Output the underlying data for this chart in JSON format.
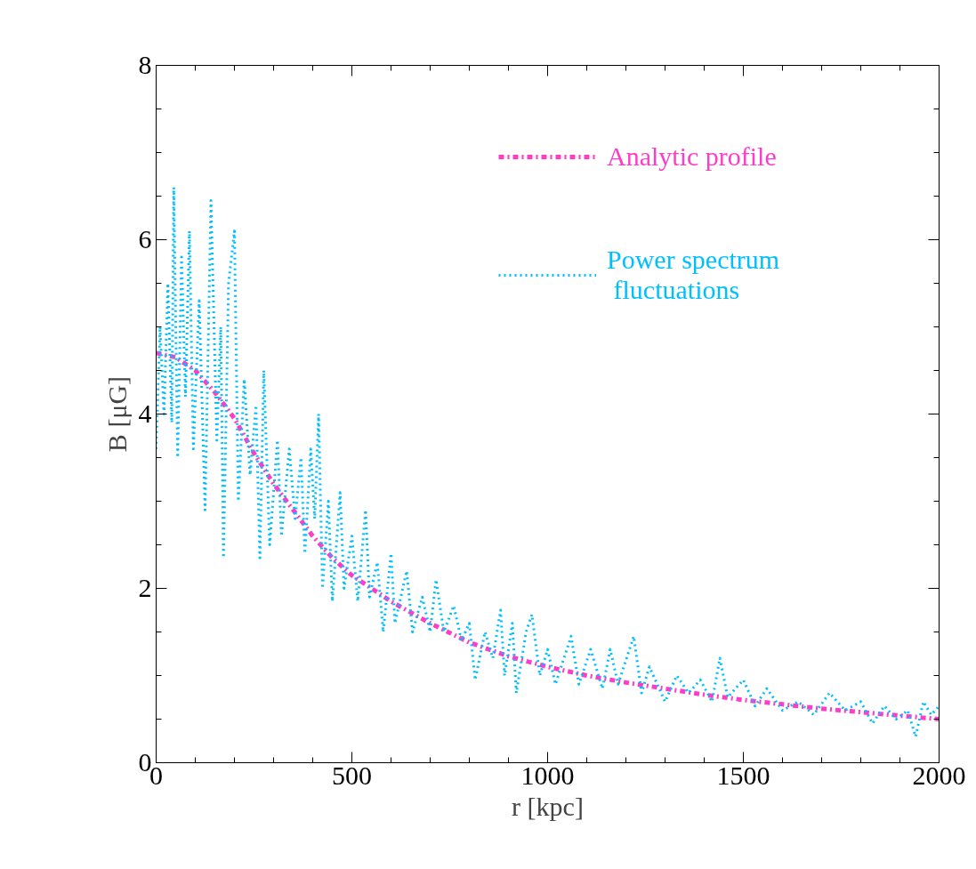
{
  "chart_data": {
    "type": "line",
    "xlabel": "r [kpc]",
    "ylabel": "B [μG]",
    "xlim": [
      0,
      2000
    ],
    "xticks": [
      0,
      500,
      1000,
      1500,
      2000
    ],
    "ylim": [
      0,
      8
    ],
    "yticks": [
      0,
      2,
      4,
      6,
      8
    ],
    "grid": false,
    "legend": "top right",
    "marker": "none",
    "series": [
      {
        "name": "Analytic profile",
        "color": "#ff3cc8",
        "line_style": "dashdot",
        "x": [
          0,
          50,
          100,
          150,
          200,
          250,
          300,
          350,
          400,
          450,
          500,
          550,
          600,
          700,
          800,
          900,
          1000,
          1100,
          1200,
          1300,
          1400,
          1500,
          1600,
          1700,
          1800,
          1900,
          2000
        ],
        "values": [
          4.7,
          4.65,
          4.5,
          4.25,
          3.95,
          3.55,
          3.2,
          2.9,
          2.6,
          2.35,
          2.15,
          2.0,
          1.85,
          1.6,
          1.38,
          1.22,
          1.1,
          1.0,
          0.92,
          0.85,
          0.78,
          0.72,
          0.67,
          0.62,
          0.58,
          0.54,
          0.5
        ]
      },
      {
        "name": "Power spectrum\n fluctuations",
        "color": "#00bfff",
        "line_style": "dotted",
        "x": [
          0,
          10,
          20,
          30,
          40,
          45,
          55,
          65,
          75,
          85,
          95,
          110,
          125,
          140,
          155,
          165,
          172,
          185,
          200,
          210,
          225,
          240,
          255,
          265,
          275,
          290,
          310,
          320,
          340,
          355,
          370,
          380,
          395,
          405,
          415,
          425,
          440,
          450,
          470,
          480,
          500,
          515,
          535,
          545,
          565,
          580,
          600,
          610,
          640,
          655,
          680,
          700,
          715,
          735,
          760,
          780,
          800,
          815,
          840,
          860,
          880,
          890,
          910,
          920,
          945,
          960,
          980,
          1000,
          1020,
          1060,
          1080,
          1110,
          1140,
          1160,
          1180,
          1220,
          1240,
          1260,
          1300,
          1330,
          1360,
          1390,
          1420,
          1440,
          1460,
          1500,
          1530,
          1560,
          1600,
          1640,
          1680,
          1720,
          1760,
          1800,
          1830,
          1860,
          1890,
          1920,
          1940,
          1960,
          1980,
          2000
        ],
        "values": [
          3.6,
          5.0,
          4.0,
          5.5,
          3.9,
          6.6,
          3.5,
          5.8,
          4.2,
          6.1,
          3.6,
          5.3,
          2.9,
          6.45,
          3.7,
          5.0,
          2.35,
          5.5,
          6.1,
          3.0,
          4.4,
          3.3,
          4.1,
          2.35,
          4.5,
          2.5,
          3.7,
          2.6,
          3.6,
          2.8,
          3.5,
          2.4,
          3.6,
          2.8,
          4.0,
          2.0,
          3.0,
          1.85,
          3.1,
          2.0,
          2.6,
          1.85,
          2.9,
          1.9,
          2.3,
          1.5,
          2.4,
          1.6,
          2.2,
          1.5,
          1.9,
          1.5,
          2.1,
          1.5,
          1.8,
          1.4,
          1.6,
          0.95,
          1.5,
          1.2,
          1.75,
          1.0,
          1.6,
          0.8,
          1.5,
          1.7,
          1.0,
          1.3,
          0.9,
          1.45,
          0.9,
          1.3,
          0.85,
          1.3,
          0.9,
          1.45,
          0.8,
          1.1,
          0.7,
          1.0,
          0.8,
          0.95,
          0.7,
          1.2,
          0.75,
          0.95,
          0.65,
          0.85,
          0.6,
          0.7,
          0.55,
          0.8,
          0.6,
          0.7,
          0.45,
          0.65,
          0.5,
          0.6,
          0.3,
          0.7,
          0.55,
          0.65
        ]
      }
    ]
  }
}
